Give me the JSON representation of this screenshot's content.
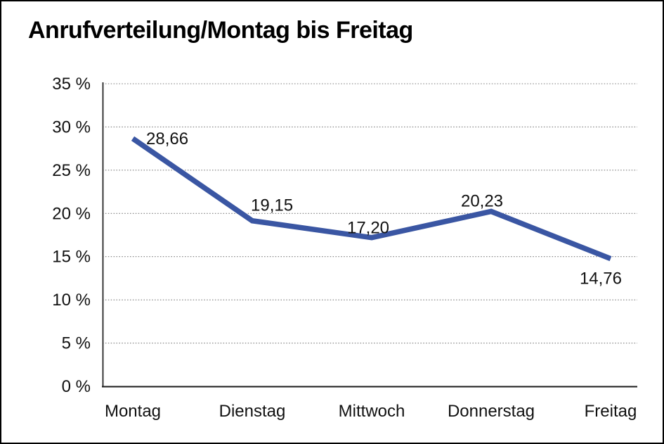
{
  "chart_data": {
    "type": "line",
    "title": "Anrufverteilung/Montag bis Freitag",
    "categories": [
      "Montag",
      "Dienstag",
      "Mittwoch",
      "Donnerstag",
      "Freitag"
    ],
    "series": [
      {
        "name": "Anrufverteilung",
        "values": [
          28.66,
          19.15,
          17.2,
          20.23,
          14.76
        ]
      }
    ],
    "value_labels": [
      "28,66",
      "19,15",
      "17,20",
      "20,23",
      "14,76"
    ],
    "y_ticks": [
      {
        "value": 35,
        "label": "35 %"
      },
      {
        "value": 30,
        "label": "30 %"
      },
      {
        "value": 25,
        "label": "25 %"
      },
      {
        "value": 20,
        "label": "20 %"
      },
      {
        "value": 15,
        "label": "15 %"
      },
      {
        "value": 10,
        "label": "10 %"
      },
      {
        "value": 5,
        "label": "5 %"
      },
      {
        "value": 0,
        "label": "0 %"
      }
    ],
    "ylim": [
      0,
      35
    ],
    "y_step": 5,
    "xlabel": "",
    "ylabel": "",
    "grid": "horizontal-dotted",
    "legend_position": "none",
    "colors": {
      "line": "#3A56A3",
      "text": "#111111",
      "grid": "#7a7a7a",
      "axis": "#1a1a1a",
      "background": "#ffffff",
      "frame_border": "#000000"
    }
  }
}
